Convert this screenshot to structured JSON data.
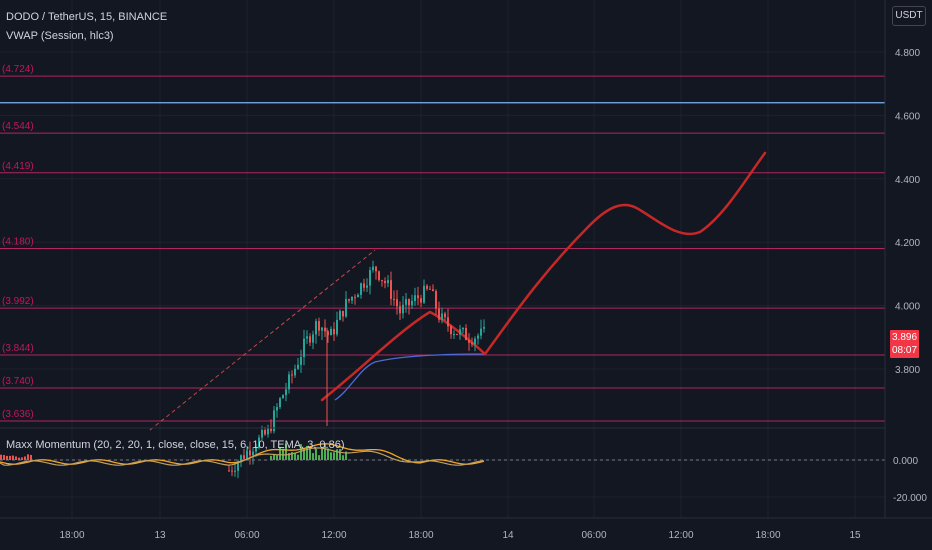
{
  "header": {
    "symbol_line": "DODO / TetherUS, 15, BINANCE",
    "vwap_line": "VWAP (Session, hlc3)",
    "currency": "USDT"
  },
  "price_scale": {
    "labels": [
      "4.800",
      "4.600",
      "4.400",
      "4.200",
      "4.000",
      "3.800"
    ],
    "current_price": "3.896",
    "countdown": "08:07"
  },
  "horizontal_levels": [
    "4.724",
    "4.544",
    "4.419",
    "4.180",
    "3.992",
    "3.844",
    "3.740",
    "3.636"
  ],
  "blue_level": 4.64,
  "indicator": {
    "label": "Maxx Momentum (20, 2, 20, 1, close, close, 15, 6, 10, TEMA, 3, 0.86)",
    "scale_labels": [
      "0.000",
      "-20.000"
    ]
  },
  "time_axis": [
    "18:00",
    "13",
    "06:00",
    "12:00",
    "18:00",
    "14",
    "06:00",
    "12:00",
    "18:00",
    "15"
  ],
  "colors": {
    "background": "#131722",
    "grid": "#1e222d",
    "level_line": "#b2265f",
    "level_label": "#c2185b",
    "blue_line": "#7ab4f0",
    "projection": "#c62828",
    "up_candle": "#26a69a",
    "down_candle": "#ef5350",
    "vwap": "#4f6ad8",
    "momentum_fast": "#f5a623",
    "momentum_slow": "#c0a060",
    "histogram": "#4caf50",
    "price_tag": "#f23645"
  }
}
